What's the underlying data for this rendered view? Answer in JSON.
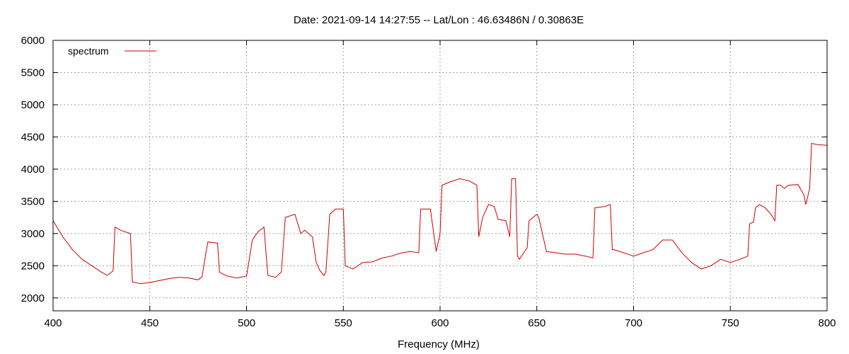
{
  "chart_data": {
    "type": "line",
    "title": "Date: 2021-09-14 14:27:55  --  Lat/Lon : 46.63486N / 0.30863E",
    "xlabel": "Frequency (MHz)",
    "ylabel": "",
    "xlim": [
      400,
      800
    ],
    "ylim": [
      1800,
      6000
    ],
    "xticks": [
      400,
      450,
      500,
      550,
      600,
      650,
      700,
      750,
      800
    ],
    "yticks": [
      2000,
      2500,
      3000,
      3500,
      4000,
      4500,
      5000,
      5500,
      6000
    ],
    "grid": true,
    "legend_position": "top-left",
    "series": [
      {
        "name": "spectrum",
        "color": "#cc0000",
        "x": [
          400,
          405,
          410,
          415,
          420,
          425,
          428,
          431,
          432,
          435,
          440,
          441,
          445,
          450,
          455,
          460,
          465,
          470,
          475,
          477,
          479,
          480,
          485,
          486,
          490,
          495,
          500,
          503,
          506,
          509,
          511,
          515,
          518,
          520,
          525,
          528,
          530,
          534,
          536,
          538,
          540,
          541,
          543,
          546,
          550,
          551,
          555,
          560,
          565,
          570,
          575,
          580,
          585,
          589,
          590,
          595,
          598,
          600,
          601,
          605,
          610,
          615,
          619,
          620,
          622,
          625,
          628,
          630,
          634,
          636,
          637,
          639,
          640,
          641,
          645,
          646,
          650,
          651,
          655,
          660,
          665,
          670,
          675,
          679,
          680,
          685,
          688,
          689,
          690,
          695,
          700,
          705,
          710,
          715,
          720,
          725,
          730,
          735,
          740,
          745,
          750,
          755,
          759,
          760,
          762,
          763,
          765,
          768,
          771,
          773,
          774,
          776,
          778,
          780,
          785,
          788,
          789,
          791,
          792,
          795,
          800
        ],
        "y": [
          3200,
          2950,
          2750,
          2600,
          2500,
          2400,
          2350,
          2420,
          3100,
          3050,
          3000,
          2250,
          2220,
          2240,
          2270,
          2300,
          2320,
          2310,
          2280,
          2330,
          2700,
          2870,
          2850,
          2400,
          2340,
          2310,
          2340,
          2900,
          3030,
          3100,
          2350,
          2320,
          2400,
          3250,
          3300,
          3000,
          3050,
          2950,
          2550,
          2420,
          2350,
          2400,
          3300,
          3380,
          3380,
          2500,
          2450,
          2550,
          2560,
          2620,
          2650,
          2700,
          2720,
          2700,
          3380,
          3380,
          2720,
          3000,
          3750,
          3800,
          3850,
          3820,
          3750,
          2950,
          3250,
          3450,
          3420,
          3220,
          3200,
          2950,
          3850,
          3850,
          2650,
          2600,
          2780,
          3200,
          3300,
          3250,
          2720,
          2700,
          2680,
          2680,
          2650,
          2620,
          3400,
          3420,
          3450,
          2750,
          2750,
          2700,
          2650,
          2700,
          2750,
          2900,
          2900,
          2700,
          2550,
          2450,
          2500,
          2600,
          2550,
          2600,
          2650,
          3150,
          3180,
          3400,
          3450,
          3400,
          3300,
          3200,
          3750,
          3750,
          3700,
          3750,
          3760,
          3600,
          3450,
          3700,
          4400,
          4380,
          4370
        ]
      }
    ]
  }
}
